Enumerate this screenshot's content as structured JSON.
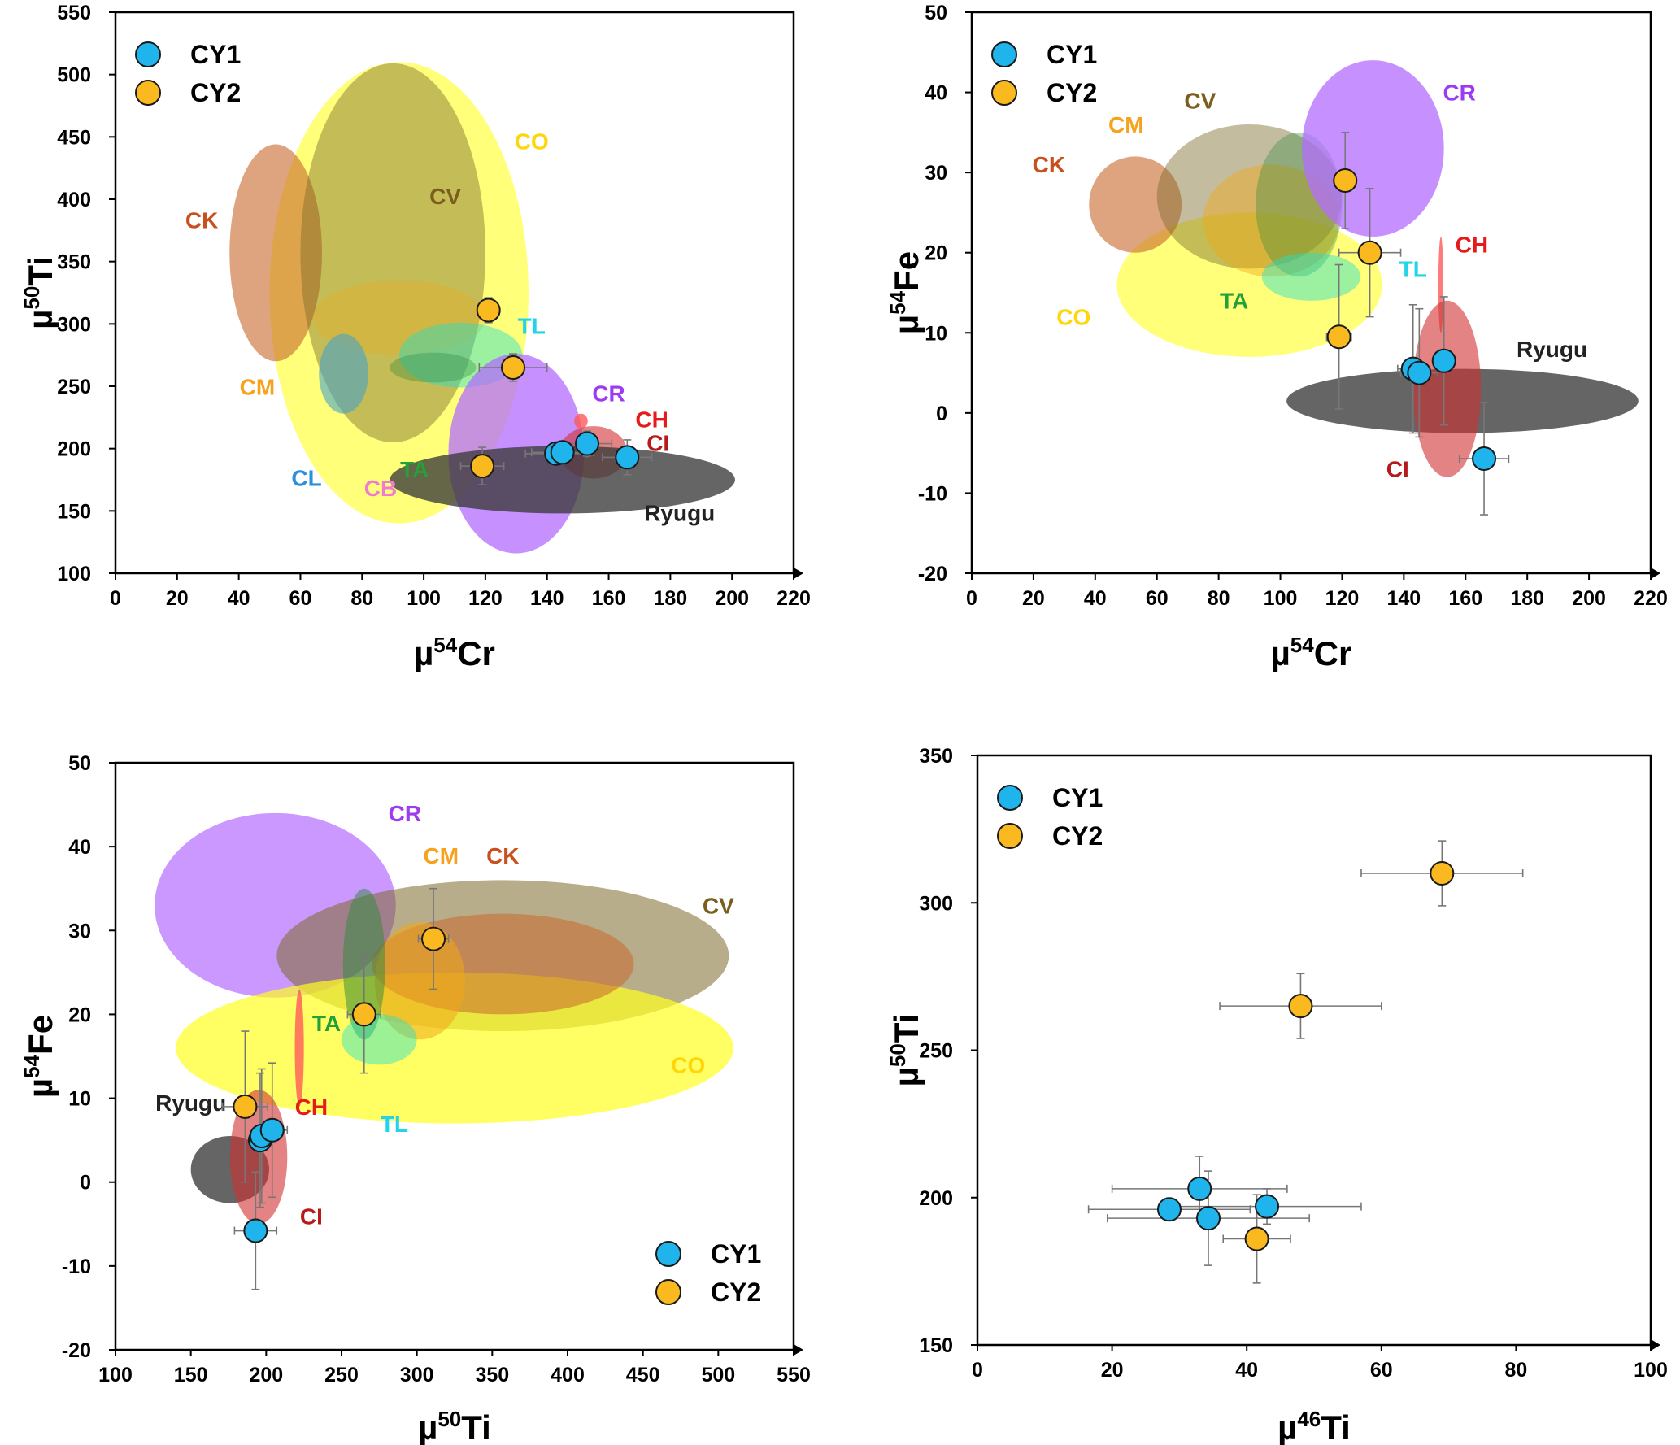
{
  "colors": {
    "CY1": "#1fb5ec",
    "CY2": "#f9b91f",
    "errorbar": "#777777"
  },
  "chart_data": [
    {
      "type": "scatter",
      "xlabel": {
        "mu": "µ",
        "sup": "54",
        "el": "Cr"
      },
      "ylabel": {
        "mu": "µ",
        "sup": "50",
        "el": "Ti"
      },
      "xlim": [
        0,
        220
      ],
      "ylim": [
        100,
        550
      ],
      "xticks": [
        "0",
        "20",
        "40",
        "60",
        "80",
        "100",
        "120",
        "140",
        "160",
        "180",
        "200",
        "220"
      ],
      "yticks": [
        "100",
        "150",
        "200",
        "250",
        "300",
        "350",
        "400",
        "450",
        "500",
        "550"
      ],
      "legend": {
        "position": "top-left",
        "entries": [
          "CY1",
          "CY2"
        ]
      },
      "regions": [
        {
          "label": "CO",
          "cx": 92,
          "cy": 325,
          "rx": 42,
          "ry": 185,
          "color": "#ffff22",
          "opacity": 0.6,
          "label_x": 135,
          "label_y": 440,
          "label_color": "#ffd60a"
        },
        {
          "label": "CK",
          "cx": 52,
          "cy": 357,
          "rx": 15,
          "ry": 87,
          "color": "#c8682b",
          "opacity": 0.6,
          "label_x": 28,
          "label_y": 377,
          "label_color": "#c8501e"
        },
        {
          "label": "CV",
          "cx": 90,
          "cy": 357,
          "rx": 30,
          "ry": 152,
          "color": "#7d6a2a",
          "opacity": 0.45,
          "label_x": 107,
          "label_y": 396,
          "label_color": "#7b5d1d"
        },
        {
          "label": "CM",
          "cx": 92,
          "cy": 305,
          "rx": 28,
          "ry": 30,
          "color": "#f0a818",
          "opacity": 0.3,
          "label_x": 46,
          "label_y": 243,
          "label_color": "#f6a21d"
        },
        {
          "label": "CL",
          "cx": 74,
          "cy": 260,
          "rx": 8,
          "ry": 32,
          "color": "#48a4c8",
          "opacity": 0.6,
          "label_x": 62,
          "label_y": 170,
          "label_color": "#2a8fde"
        },
        {
          "label": "TL",
          "cx": 112,
          "cy": 275,
          "rx": 20,
          "ry": 26,
          "color": "#22e0cc",
          "opacity": 0.45,
          "label_x": 135,
          "label_y": 292,
          "label_color": "#22d4e8"
        },
        {
          "label": "TA",
          "cx": 103,
          "cy": 265,
          "rx": 14,
          "ry": 12,
          "color": "#2e8a3c",
          "opacity": 0.35,
          "label_x": 97,
          "label_y": 177,
          "label_color": "#23a03a"
        },
        {
          "label": "CR",
          "cx": 130,
          "cy": 196,
          "rx": 22,
          "ry": 80,
          "color": "#b36cff",
          "opacity": 0.75,
          "label_x": 160,
          "label_y": 238,
          "label_color": "#9c3bf0"
        },
        {
          "label": "CH",
          "cx": 151,
          "cy": 222,
          "rx": 2.2,
          "ry": 6,
          "color": "#ff5a5a",
          "opacity": 0.8,
          "label_x": 174,
          "label_y": 217,
          "label_color": "#e51b1b"
        },
        {
          "label": "CI",
          "cx": 155,
          "cy": 197,
          "rx": 11,
          "ry": 21,
          "color": "#d03030",
          "opacity": 0.6,
          "label_x": 176,
          "label_y": 198,
          "label_color": "#b51b1b"
        },
        {
          "label": "Ryugu",
          "cx": 145,
          "cy": 175,
          "rx": 56,
          "ry": 27,
          "color": "#3a3a3a",
          "opacity": 0.78,
          "label_x": 183,
          "label_y": 142,
          "label_color": "#222222"
        },
        {
          "label": "CB",
          "cx": 86,
          "cy": 162,
          "rx": 0,
          "ry": 0,
          "color": "#f07cd0",
          "opacity": 0,
          "label_x": 86,
          "label_y": 162,
          "label_color": "#f07cd0"
        }
      ],
      "points": [
        {
          "series": "CY2",
          "x": 121,
          "y": 311,
          "xerr": 3,
          "yerr": 10
        },
        {
          "series": "CY2",
          "x": 129,
          "y": 265,
          "xerr": 11,
          "yerr": 11
        },
        {
          "series": "CY2",
          "x": 119,
          "y": 186,
          "xerr": 7,
          "yerr": 15
        },
        {
          "series": "CY1",
          "x": 143,
          "y": 196,
          "xerr": 10,
          "yerr": 7
        },
        {
          "series": "CY1",
          "x": 145,
          "y": 197,
          "xerr": 10,
          "yerr": 7
        },
        {
          "series": "CY1",
          "x": 153,
          "y": 204,
          "xerr": 8,
          "yerr": 10
        },
        {
          "series": "CY1",
          "x": 166,
          "y": 193,
          "xerr": 8,
          "yerr": 14
        }
      ]
    },
    {
      "type": "scatter",
      "xlabel": {
        "mu": "µ",
        "sup": "54",
        "el": "Cr"
      },
      "ylabel": {
        "mu": "µ",
        "sup": "54",
        "el": "Fe"
      },
      "xlim": [
        0,
        220
      ],
      "ylim": [
        -20,
        50
      ],
      "xticks": [
        "0",
        "20",
        "40",
        "60",
        "80",
        "100",
        "120",
        "140",
        "160",
        "180",
        "200",
        "220"
      ],
      "yticks": [
        "-20",
        "-10",
        "0",
        "10",
        "20",
        "30",
        "40",
        "50"
      ],
      "legend": {
        "position": "top-left",
        "entries": [
          "CY1",
          "CY2"
        ]
      },
      "regions": [
        {
          "label": "CO",
          "cx": 90,
          "cy": 16,
          "rx": 43,
          "ry": 9,
          "color": "#ffff22",
          "opacity": 0.6,
          "label_x": 33,
          "label_y": 11,
          "label_color": "#ffd60a"
        },
        {
          "label": "CK",
          "cx": 53,
          "cy": 26,
          "rx": 15,
          "ry": 6,
          "color": "#c8682b",
          "opacity": 0.6,
          "label_x": 25,
          "label_y": 30,
          "label_color": "#c8501e"
        },
        {
          "label": "CV",
          "cx": 90,
          "cy": 27,
          "rx": 30,
          "ry": 9,
          "color": "#7d6a2a",
          "opacity": 0.45,
          "label_x": 74,
          "label_y": 38,
          "label_color": "#7b5d1d"
        },
        {
          "label": "CM",
          "cx": 97,
          "cy": 24,
          "rx": 22,
          "ry": 7,
          "color": "#f0a818",
          "opacity": 0.45,
          "label_x": 50,
          "label_y": 35,
          "label_color": "#f6a21d"
        },
        {
          "label": "TA",
          "cx": 106,
          "cy": 26,
          "rx": 14,
          "ry": 9,
          "color": "#2e8a3c",
          "opacity": 0.35,
          "label_x": 85,
          "label_y": 13,
          "label_color": "#23a03a"
        },
        {
          "label": "TL",
          "cx": 110,
          "cy": 17,
          "rx": 16,
          "ry": 3,
          "color": "#22e0cc",
          "opacity": 0.45,
          "label_x": 143,
          "label_y": 17,
          "label_color": "#22d4e8"
        },
        {
          "label": "CR",
          "cx": 130,
          "cy": 33,
          "rx": 23,
          "ry": 11,
          "color": "#b36cff",
          "opacity": 0.75,
          "label_x": 158,
          "label_y": 39,
          "label_color": "#9c3bf0"
        },
        {
          "label": "CH",
          "cx": 152,
          "cy": 16,
          "rx": 0.8,
          "ry": 6,
          "color": "#ff5a5a",
          "opacity": 0.8,
          "label_x": 162,
          "label_y": 20,
          "label_color": "#e51b1b"
        },
        {
          "label": "Ryugu",
          "cx": 159,
          "cy": 1.5,
          "rx": 57,
          "ry": 4,
          "color": "#3a3a3a",
          "opacity": 0.78,
          "label_x": 188,
          "label_y": 7,
          "label_color": "#222222"
        },
        {
          "label": "CI",
          "cx": 154,
          "cy": 3,
          "rx": 11,
          "ry": 11,
          "color": "#d03030",
          "opacity": 0.6,
          "label_x": 138,
          "label_y": -8,
          "label_color": "#b51b1b"
        }
      ],
      "points": [
        {
          "series": "CY2",
          "x": 121,
          "y": 29,
          "xerr": 1,
          "yerr": 6
        },
        {
          "series": "CY2",
          "x": 129,
          "y": 20,
          "xerr": 10,
          "yerr": 8
        },
        {
          "series": "CY2",
          "x": 119,
          "y": 9.5,
          "xerr": 4,
          "yerr": 9
        },
        {
          "series": "CY1",
          "x": 143,
          "y": 5.5,
          "xerr": 5,
          "yerr": 8
        },
        {
          "series": "CY1",
          "x": 145,
          "y": 5,
          "xerr": 6,
          "yerr": 8
        },
        {
          "series": "CY1",
          "x": 153,
          "y": 6.5,
          "xerr": 1,
          "yerr": 8
        },
        {
          "series": "CY1",
          "x": 166,
          "y": -5.7,
          "xerr": 8,
          "yerr": 7
        }
      ]
    },
    {
      "type": "scatter",
      "xlabel": {
        "mu": "µ",
        "sup": "50",
        "el": "Ti"
      },
      "ylabel": {
        "mu": "µ",
        "sup": "54",
        "el": "Fe"
      },
      "xlim": [
        100,
        550
      ],
      "ylim": [
        -20,
        50
      ],
      "xticks": [
        "100",
        "150",
        "200",
        "250",
        "300",
        "350",
        "400",
        "450",
        "500",
        "550"
      ],
      "yticks": [
        "-20",
        "-10",
        "0",
        "10",
        "20",
        "30",
        "40",
        "50"
      ],
      "legend": {
        "position": "bottom-right",
        "entries": [
          "CY1",
          "CY2"
        ]
      },
      "regions": [
        {
          "label": "CR",
          "cx": 206,
          "cy": 33,
          "rx": 80,
          "ry": 11,
          "color": "#b36cff",
          "opacity": 0.7,
          "label_x": 292,
          "label_y": 43,
          "label_color": "#9c3bf0"
        },
        {
          "label": "CV",
          "cx": 357,
          "cy": 27,
          "rx": 150,
          "ry": 9,
          "color": "#7d6a2a",
          "opacity": 0.55,
          "label_x": 500,
          "label_y": 32,
          "label_color": "#7b5d1d"
        },
        {
          "label": "CO",
          "cx": 325,
          "cy": 16,
          "rx": 185,
          "ry": 9,
          "color": "#ffff22",
          "opacity": 0.7,
          "label_x": 480,
          "label_y": 13,
          "label_color": "#ffd60a"
        },
        {
          "label": "CK",
          "cx": 357,
          "cy": 26,
          "rx": 87,
          "ry": 6,
          "color": "#c8682b",
          "opacity": 0.55,
          "label_x": 357,
          "label_y": 38,
          "label_color": "#c8501e"
        },
        {
          "label": "CM",
          "cx": 302,
          "cy": 24,
          "rx": 30,
          "ry": 7,
          "color": "#f0a818",
          "opacity": 0.55,
          "label_x": 316,
          "label_y": 38,
          "label_color": "#f6a21d"
        },
        {
          "label": "TA",
          "cx": 265,
          "cy": 26,
          "rx": 14,
          "ry": 9,
          "color": "#2e8a3c",
          "opacity": 0.5,
          "label_x": 240,
          "label_y": 18,
          "label_color": "#23a03a"
        },
        {
          "label": "TL",
          "cx": 275,
          "cy": 17,
          "rx": 25,
          "ry": 3,
          "color": "#22e0cc",
          "opacity": 0.45,
          "label_x": 285,
          "label_y": 6,
          "label_color": "#22d4e8"
        },
        {
          "label": "CH",
          "cx": 222,
          "cy": 16,
          "rx": 3,
          "ry": 7,
          "color": "#ff5a5a",
          "opacity": 0.8,
          "label_x": 230,
          "label_y": 8,
          "label_color": "#e51b1b"
        },
        {
          "label": "Ryugu",
          "cx": 176,
          "cy": 1.5,
          "rx": 26,
          "ry": 4,
          "color": "#3a3a3a",
          "opacity": 0.78,
          "label_x": 150,
          "label_y": 8.5,
          "label_color": "#222222"
        },
        {
          "label": "CI",
          "cx": 195,
          "cy": 3,
          "rx": 19,
          "ry": 8,
          "color": "#d03030",
          "opacity": 0.6,
          "label_x": 230,
          "label_y": -5,
          "label_color": "#b51b1b"
        }
      ],
      "points": [
        {
          "series": "CY2",
          "x": 311,
          "y": 29,
          "xerr": 10,
          "yerr": 6
        },
        {
          "series": "CY2",
          "x": 265,
          "y": 20,
          "xerr": 11,
          "yerr": 7
        },
        {
          "series": "CY2",
          "x": 186,
          "y": 9,
          "xerr": 15,
          "yerr": 9
        },
        {
          "series": "CY1",
          "x": 196,
          "y": 5,
          "xerr": 7,
          "yerr": 8
        },
        {
          "series": "CY1",
          "x": 197,
          "y": 5.5,
          "xerr": 7,
          "yerr": 8
        },
        {
          "series": "CY1",
          "x": 204,
          "y": 6.2,
          "xerr": 10,
          "yerr": 8
        },
        {
          "series": "CY1",
          "x": 193,
          "y": -5.8,
          "xerr": 14,
          "yerr": 7
        }
      ]
    },
    {
      "type": "scatter",
      "xlabel": {
        "mu": "µ",
        "sup": "46",
        "el": "Ti"
      },
      "ylabel": {
        "mu": "µ",
        "sup": "50",
        "el": "Ti"
      },
      "xlim": [
        0,
        100
      ],
      "ylim": [
        150,
        350
      ],
      "xticks": [
        "0",
        "20",
        "40",
        "60",
        "80",
        "100"
      ],
      "yticks": [
        "150",
        "200",
        "250",
        "300",
        "350"
      ],
      "legend": {
        "position": "top-left",
        "entries": [
          "CY1",
          "CY2"
        ]
      },
      "regions": [],
      "points": [
        {
          "series": "CY2",
          "x": 69,
          "y": 310,
          "xerr": 12,
          "yerr": 11
        },
        {
          "series": "CY2",
          "x": 48,
          "y": 265,
          "xerr": 12,
          "yerr": 11
        },
        {
          "series": "CY2",
          "x": 41.5,
          "y": 186,
          "xerr": 5,
          "yerr": 15
        },
        {
          "series": "CY1",
          "x": 33,
          "y": 203,
          "xerr": 13,
          "yerr": 11
        },
        {
          "series": "CY1",
          "x": 28.5,
          "y": 196,
          "xerr": 12,
          "yerr": 3
        },
        {
          "series": "CY1",
          "x": 34.3,
          "y": 193,
          "xerr": 15,
          "yerr": 16
        },
        {
          "series": "CY1",
          "x": 43,
          "y": 197,
          "xerr": 14,
          "yerr": 6
        }
      ]
    }
  ]
}
